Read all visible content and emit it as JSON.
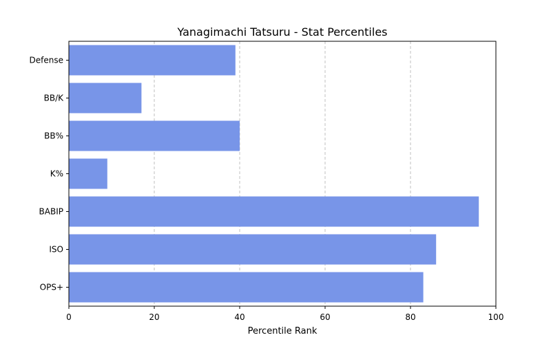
{
  "chart_data": {
    "type": "bar",
    "orientation": "horizontal",
    "title": "Yanagimachi Tatsuru - Stat Percentiles",
    "xlabel": "Percentile Rank",
    "ylabel": "",
    "categories": [
      "OPS+",
      "ISO",
      "BABIP",
      "K%",
      "BB%",
      "BB/K",
      "Defense"
    ],
    "values": [
      83,
      86,
      96,
      9,
      40,
      17,
      39
    ],
    "xlim": [
      0,
      100
    ],
    "xticks": [
      "0",
      "20",
      "40",
      "60",
      "80",
      "100"
    ],
    "grid": "vertical dashed",
    "bar_color": "#7895e8"
  }
}
